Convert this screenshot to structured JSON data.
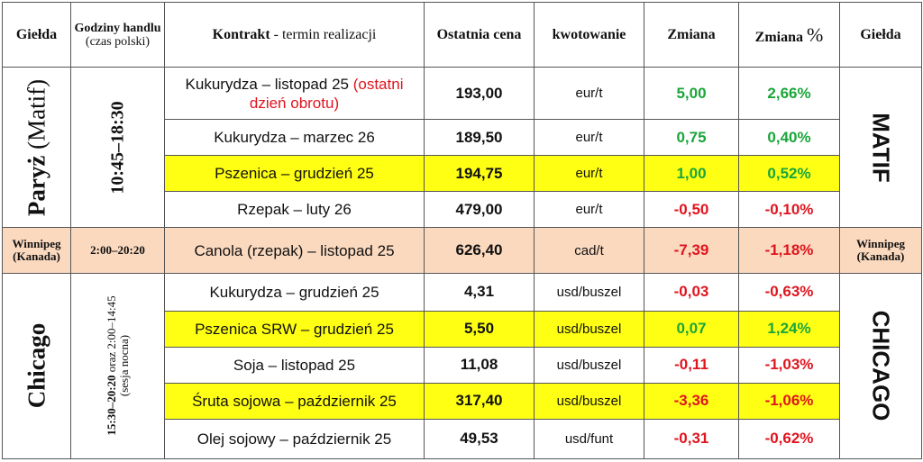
{
  "headers": {
    "exchange_left": "Giełda",
    "hours_bold": "Godziny handlu",
    "hours_note": "(czas polski)",
    "contract_bold": "Kontrakt",
    "contract_rest": " - termin realizacji",
    "last_price": "Ostatnia cena",
    "quote": "kwotowanie",
    "change": "Zmiana",
    "change_pct_word": "Zmiana",
    "change_pct_sign": "%",
    "exchange_right": "Giełda"
  },
  "groups": {
    "paris": {
      "name_bold": "Paryż",
      "name_rest": " (Matif)",
      "hours": "10:45–18:30",
      "tag": "MATIF"
    },
    "winnipeg": {
      "name_line1": "Winnipeg",
      "name_line2": "(Kanada)",
      "hours": "2:00–20:20",
      "tag_line1": "Winnipeg",
      "tag_line2": "(Kanada)"
    },
    "chicago": {
      "name": "Chicago",
      "hours_bold": "15:30–20:20",
      "hours_rest": " oraz 2:00–14:45",
      "hours_line2": "(sesja nocna)",
      "tag": "CHICAGO"
    }
  },
  "rows": [
    {
      "contract": "Kukurydza – listopad 25",
      "note": "(ostatni dzień obrotu)",
      "price": "193,00",
      "unit": "eur/t",
      "change": "5,00",
      "change_pct": "2,66%",
      "direction": "up",
      "highlight": "none"
    },
    {
      "contract": "Kukurydza – marzec 26",
      "price": "189,50",
      "unit": "eur/t",
      "change": "0,75",
      "change_pct": "0,40%",
      "direction": "up",
      "highlight": "none"
    },
    {
      "contract": "Pszenica – grudzień 25",
      "price": "194,75",
      "unit": "eur/t",
      "change": "1,00",
      "change_pct": "0,52%",
      "direction": "up",
      "highlight": "yellow"
    },
    {
      "contract": "Rzepak – luty 26",
      "price": "479,00",
      "unit": "eur/t",
      "change": "-0,50",
      "change_pct": "-0,10%",
      "direction": "down",
      "highlight": "none"
    },
    {
      "contract": "Canola (rzepak) – listopad 25",
      "price": "626,40",
      "unit": "cad/t",
      "change": "-7,39",
      "change_pct": "-1,18%",
      "direction": "down",
      "highlight": "peach"
    },
    {
      "contract": "Kukurydza – grudzień 25",
      "price": "4,31",
      "unit": "usd/buszel",
      "change": "-0,03",
      "change_pct": "-0,63%",
      "direction": "down",
      "highlight": "none"
    },
    {
      "contract": "Pszenica SRW – grudzień 25",
      "price": "5,50",
      "unit": "usd/buszel",
      "change": "0,07",
      "change_pct": "1,24%",
      "direction": "up",
      "highlight": "yellow"
    },
    {
      "contract": "Soja – listopad 25",
      "price": "11,08",
      "unit": "usd/buszel",
      "change": "-0,11",
      "change_pct": "-1,03%",
      "direction": "down",
      "highlight": "none"
    },
    {
      "contract": "Śruta sojowa – październik 25",
      "price": "317,40",
      "unit": "usd/buszel",
      "change": "-3,36",
      "change_pct": "-1,06%",
      "direction": "down",
      "highlight": "yellow"
    },
    {
      "contract": "Olej sojowy – październik 25",
      "price": "49,53",
      "unit": "usd/funt",
      "change": "-0,31",
      "change_pct": "-0,62%",
      "direction": "down",
      "highlight": "none"
    }
  ],
  "colors": {
    "positive": "#1aa63a",
    "negative": "#e0141e",
    "highlight_yellow": "#ffff14",
    "highlight_peach": "#fbd9bf"
  }
}
